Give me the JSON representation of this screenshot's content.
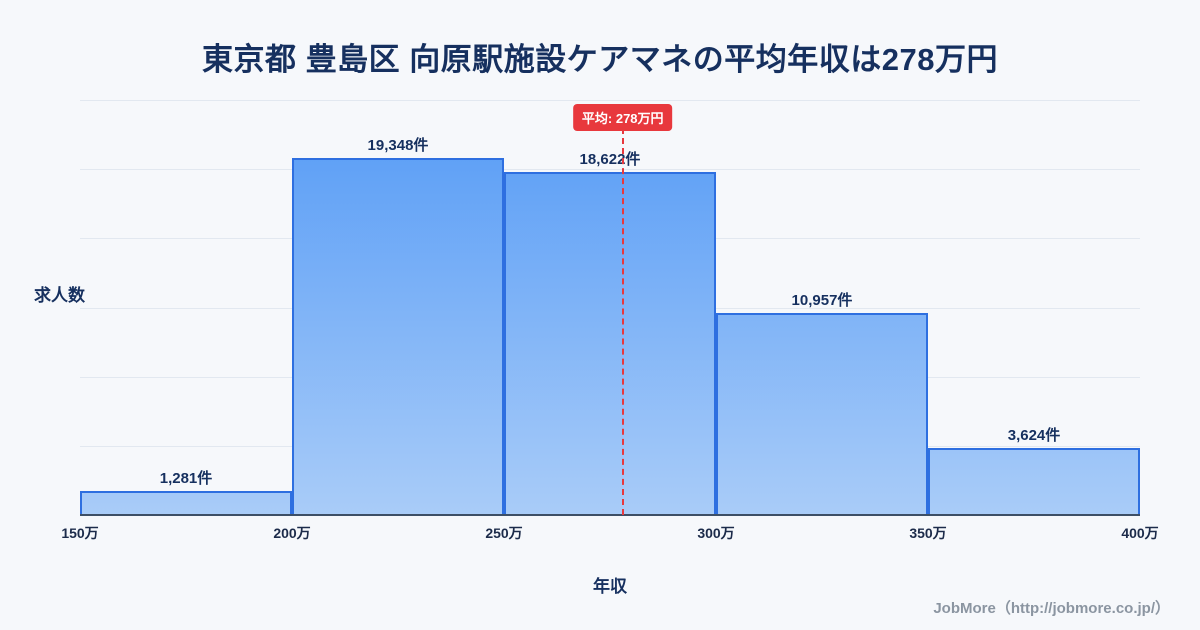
{
  "page": {
    "footer": "JobMore（http://jobmore.co.jp/）"
  },
  "chart_data": {
    "type": "bar",
    "title": "東京都 豊島区 向原駅施設ケアマネの平均年収は278万円",
    "xlabel": "年収",
    "ylabel": "求人数",
    "x_range": [
      150,
      400
    ],
    "x_tick_values": [
      150,
      200,
      250,
      300,
      350,
      400
    ],
    "x_ticks": [
      "150万",
      "200万",
      "250万",
      "300万",
      "350万",
      "400万"
    ],
    "bins": [
      [
        150,
        200
      ],
      [
        200,
        250
      ],
      [
        250,
        300
      ],
      [
        300,
        350
      ],
      [
        350,
        400
      ]
    ],
    "values": [
      1281,
      19348,
      18622,
      10957,
      3624
    ],
    "value_labels": [
      "1,281件",
      "19,348件",
      "18,622件",
      "10,957件",
      "3,624件"
    ],
    "ylim": [
      0,
      22500
    ],
    "grid": true,
    "gridline_count": 6,
    "average": {
      "value": 278,
      "label": "平均: 278万円"
    },
    "colors": {
      "bar_fill_top": "#549af6",
      "bar_fill_bottom": "#a9ccf8",
      "bar_border": "#2e6fe0",
      "average_line": "#e8383d",
      "title_text": "#16305f",
      "background": "#f6f8fb"
    }
  }
}
